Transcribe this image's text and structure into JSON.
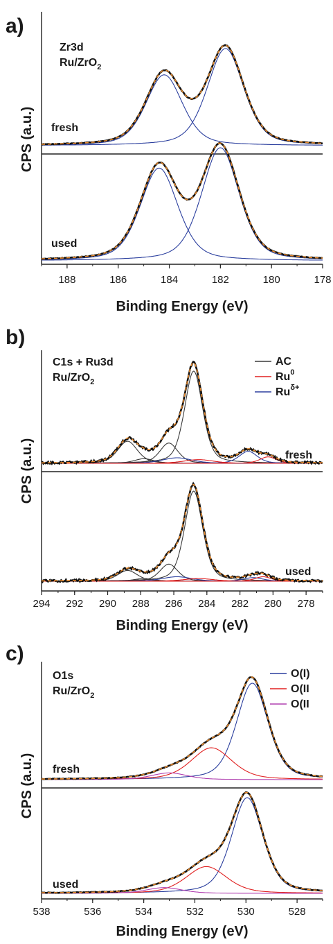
{
  "chart_data": [
    {
      "panel_label": "a)",
      "type": "line",
      "xlabel": "Binding Energy (eV)",
      "ylabel": "CPS (a.u.)",
      "xlim": [
        189,
        178
      ],
      "x_ticks": [
        188,
        186,
        184,
        182,
        180,
        178
      ],
      "annotation_lines": [
        "Zr3d",
        "Ru/ZrO2"
      ],
      "legend": [],
      "subplots": [
        {
          "label": "fresh",
          "peaks": [
            {
              "color": "#2b3f9e",
              "center": 184.2,
              "height": 0.73,
              "width": 0.72
            },
            {
              "color": "#2b3f9e",
              "center": 181.8,
              "height": 1.0,
              "width": 0.72
            }
          ],
          "baseline": 0.0
        },
        {
          "label": "used",
          "peaks": [
            {
              "color": "#2b3f9e",
              "center": 184.4,
              "height": 0.82,
              "width": 0.74
            },
            {
              "color": "#2b3f9e",
              "center": 182.0,
              "height": 1.0,
              "width": 0.74
            }
          ],
          "baseline": 0.0
        }
      ]
    },
    {
      "panel_label": "b)",
      "type": "line",
      "xlabel": "Binding Energy (eV)",
      "ylabel": "CPS (a.u.)",
      "xlim": [
        294,
        277
      ],
      "x_ticks": [
        294,
        292,
        290,
        288,
        286,
        284,
        282,
        280,
        278
      ],
      "annotation_lines": [
        "C1s + Ru3d",
        "Ru/ZrO2"
      ],
      "legend": [
        {
          "label": "AC",
          "color": "#3a3a3a"
        },
        {
          "label": "Ru0",
          "color": "#e02020"
        },
        {
          "label": "Ruδ+",
          "color": "#2b3f9e"
        }
      ],
      "subplots": [
        {
          "label": "fresh",
          "peaks": [
            {
              "color": "#3a3a3a",
              "center": 284.8,
              "height": 1.0,
              "width": 0.55
            },
            {
              "color": "#3a3a3a",
              "center": 286.3,
              "height": 0.22,
              "width": 0.55
            },
            {
              "color": "#3a3a3a",
              "center": 288.8,
              "height": 0.24,
              "width": 0.6
            },
            {
              "color": "#3a3a3a",
              "center": 287.8,
              "height": 0.05,
              "width": 0.6
            },
            {
              "color": "#2b3f9e",
              "center": 281.5,
              "height": 0.13,
              "width": 0.55
            },
            {
              "color": "#2b3f9e",
              "center": 285.8,
              "height": 0.06,
              "width": 0.9
            },
            {
              "color": "#e02020",
              "center": 280.3,
              "height": 0.07,
              "width": 0.5
            },
            {
              "color": "#e02020",
              "center": 284.5,
              "height": 0.04,
              "width": 0.9
            }
          ],
          "baseline": 0.0
        },
        {
          "label": "used",
          "peaks": [
            {
              "color": "#3a3a3a",
              "center": 284.8,
              "height": 1.0,
              "width": 0.55
            },
            {
              "color": "#3a3a3a",
              "center": 286.3,
              "height": 0.19,
              "width": 0.55
            },
            {
              "color": "#3a3a3a",
              "center": 288.8,
              "height": 0.12,
              "width": 0.6
            },
            {
              "color": "#3a3a3a",
              "center": 287.8,
              "height": 0.03,
              "width": 0.6
            },
            {
              "color": "#2b3f9e",
              "center": 281.2,
              "height": 0.04,
              "width": 0.6
            },
            {
              "color": "#2b3f9e",
              "center": 285.8,
              "height": 0.05,
              "width": 0.9
            },
            {
              "color": "#e02020",
              "center": 280.6,
              "height": 0.05,
              "width": 0.5
            },
            {
              "color": "#e02020",
              "center": 284.5,
              "height": 0.03,
              "width": 0.9
            }
          ],
          "baseline": 0.0
        }
      ]
    },
    {
      "panel_label": "c)",
      "type": "line",
      "xlabel": "Binding Energy (eV)",
      "ylabel": "CPS (a.u.)",
      "xlim": [
        538,
        527
      ],
      "x_ticks": [
        538,
        536,
        534,
        532,
        530,
        528
      ],
      "annotation_lines": [
        "O1s",
        "Ru/ZrO2"
      ],
      "legend": [
        {
          "label": "O(I)",
          "color": "#2b3f9e"
        },
        {
          "label": "O(II",
          "color": "#e02020"
        },
        {
          "label": "O(II",
          "color": "#b040b0"
        }
      ],
      "subplots": [
        {
          "label": "fresh",
          "peaks": [
            {
              "color": "#2b3f9e",
              "center": 529.75,
              "height": 1.0,
              "width": 0.62
            },
            {
              "color": "#e02020",
              "center": 531.35,
              "height": 0.33,
              "width": 0.8
            },
            {
              "color": "#b040b0",
              "center": 533.0,
              "height": 0.07,
              "width": 0.7
            }
          ],
          "baseline": 0.0
        },
        {
          "label": "used",
          "peaks": [
            {
              "color": "#2b3f9e",
              "center": 529.95,
              "height": 1.0,
              "width": 0.62
            },
            {
              "color": "#e02020",
              "center": 531.55,
              "height": 0.28,
              "width": 0.8
            },
            {
              "color": "#b040b0",
              "center": 533.2,
              "height": 0.06,
              "width": 0.7
            }
          ],
          "baseline": 0.0
        }
      ]
    }
  ]
}
